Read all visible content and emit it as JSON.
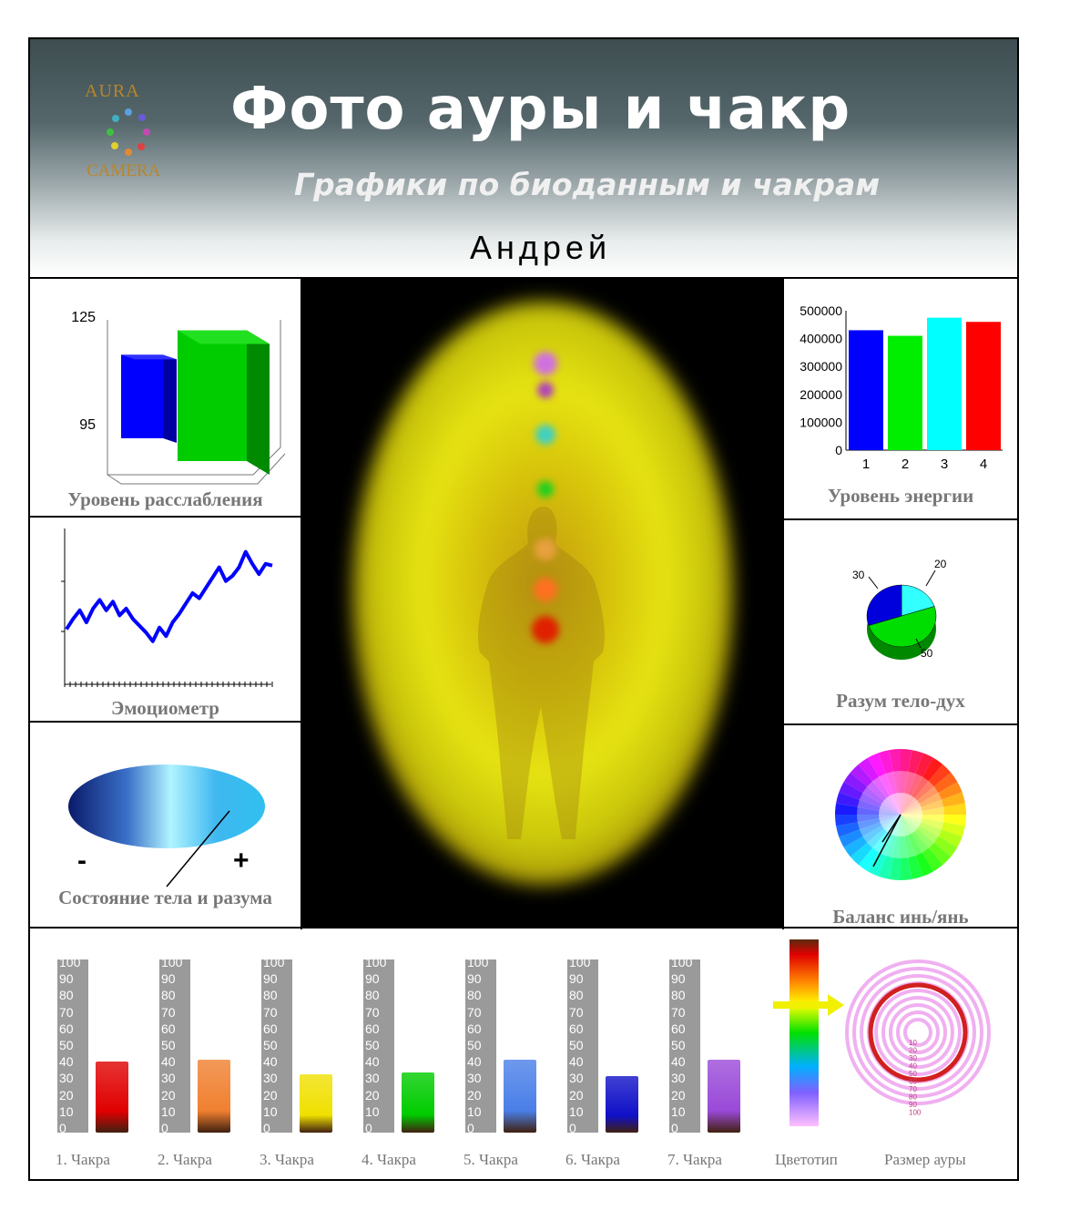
{
  "header": {
    "logo_top": "AURA",
    "logo_bottom": "CAMERA",
    "title": "Фото  ауры и чакр",
    "subtitle": "Графики по биоданным и чакрам",
    "person_name": "Андрей"
  },
  "panels": {
    "relaxation": {
      "caption": "Уровень расслабления",
      "tick_high": "125",
      "tick_low": "95"
    },
    "emotiometer": {
      "caption": "Эмоциометр"
    },
    "body_mind": {
      "caption": "Состояние тела и разума",
      "minus": "-",
      "plus": "+"
    },
    "energy": {
      "caption": "Уровень энергии"
    },
    "mind_body_spirit": {
      "caption": "Разум тело-дух",
      "labels": [
        "30",
        "20",
        "50"
      ]
    },
    "yin_yang": {
      "caption": "Баланс инь/янь"
    }
  },
  "chart_data": [
    {
      "type": "bar",
      "title": "Уровень расслабления",
      "ylim": [
        95,
        125
      ],
      "series": [
        {
          "values": [
            115
          ]
        },
        {
          "values": [
            122
          ]
        }
      ],
      "colors": [
        "#0000ff",
        "#00cc00"
      ]
    },
    {
      "type": "bar",
      "title": "Уровень энергии",
      "categories": [
        "1",
        "2",
        "3",
        "4"
      ],
      "values": [
        430000,
        410000,
        475000,
        460000
      ],
      "yticks": [
        "0",
        "100000",
        "200000",
        "300000",
        "400000",
        "500000"
      ],
      "ylim": [
        0,
        500000
      ],
      "colors": [
        "#0000ff",
        "#00ee00",
        "#00ffff",
        "#ff0000"
      ]
    },
    {
      "type": "line",
      "title": "Эмоциометр",
      "values": [
        32,
        38,
        43,
        36,
        44,
        49,
        43,
        48,
        40,
        44,
        38,
        34,
        30,
        25,
        33,
        28,
        36,
        41,
        47,
        53,
        50,
        56,
        62,
        68,
        60,
        63,
        68,
        77,
        70,
        64,
        70,
        69
      ],
      "color": "#0000ff"
    },
    {
      "type": "pie",
      "title": "Разум тело-дух",
      "values": [
        30,
        20,
        50
      ],
      "labels": [
        "30",
        "20",
        "50"
      ],
      "colors": [
        "#0000dd",
        "#33ffff",
        "#00dd00"
      ]
    },
    {
      "type": "bar",
      "title": "Чакры",
      "categories": [
        "1. Чакра",
        "2. Чакра",
        "3. Чакра",
        "4. Чакра",
        "5. Чакра",
        "6. Чакра",
        "7. Чакра"
      ],
      "values": [
        43,
        44,
        35,
        36,
        44,
        34,
        44
      ],
      "ylim": [
        0,
        100
      ],
      "yticks": [
        "100",
        "90",
        "80",
        "70",
        "60",
        "50",
        "40",
        "30",
        "20",
        "10",
        "0"
      ],
      "colors": [
        "#e00000",
        "#f08030",
        "#f0e000",
        "#00cc00",
        "#4a7fe8",
        "#1010c8",
        "#9a4ad8"
      ]
    }
  ],
  "bottom": {
    "colortype_label": "Цветотип",
    "aura_size_label": "Размер ауры",
    "aura_size_ticks": [
      "10",
      "20",
      "30",
      "40",
      "50",
      "60",
      "70",
      "80",
      "90",
      "100"
    ]
  }
}
